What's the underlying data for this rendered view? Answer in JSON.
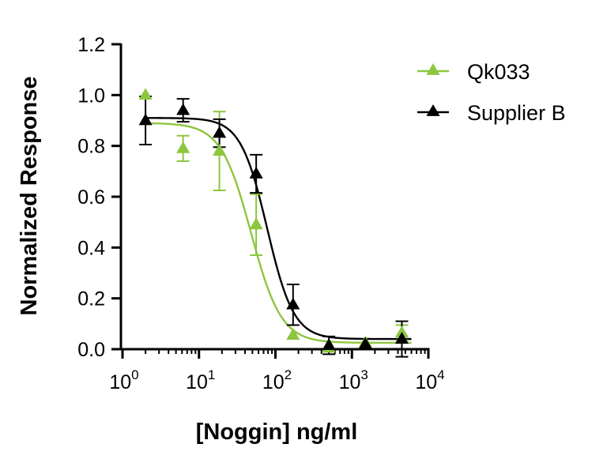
{
  "chart_data": {
    "type": "scatter",
    "title": "",
    "xlabel": "[Noggin] ng/ml",
    "ylabel": "Normalized Response",
    "xscale": "log10",
    "xlim": [
      1,
      10000
    ],
    "ylim": [
      0,
      1.2
    ],
    "x_ticks": [
      1,
      10,
      100,
      1000,
      10000
    ],
    "x_tick_labels": [
      {
        "base": "10",
        "exp": "0"
      },
      {
        "base": "10",
        "exp": "1"
      },
      {
        "base": "10",
        "exp": "2"
      },
      {
        "base": "10",
        "exp": "3"
      },
      {
        "base": "10",
        "exp": "4"
      }
    ],
    "y_ticks": [
      0,
      0.2,
      0.4,
      0.6,
      0.8,
      1.0,
      1.2
    ],
    "y_tick_labels": [
      "0.0",
      "0.2",
      "0.4",
      "0.6",
      "0.8",
      "1.0",
      "1.2"
    ],
    "grid": false,
    "legend_position": "top-right",
    "series": [
      {
        "name": "Qk033",
        "color": "#8dc63f",
        "marker": "triangle",
        "points": [
          {
            "x": 2.0,
            "y": 1.0,
            "err": 0.0
          },
          {
            "x": 6.2,
            "y": 0.79,
            "err": 0.05
          },
          {
            "x": 18.5,
            "y": 0.78,
            "err": 0.155
          },
          {
            "x": 56,
            "y": 0.49,
            "err": 0.12
          },
          {
            "x": 170,
            "y": 0.055,
            "err": 0.0
          },
          {
            "x": 500,
            "y": 0.005,
            "err": 0.0
          },
          {
            "x": 1500,
            "y": 0.025,
            "err": 0.0
          },
          {
            "x": 4500,
            "y": 0.065,
            "err": 0.03
          }
        ],
        "fit": {
          "top": 0.89,
          "bottom": 0.025,
          "ic50": 48,
          "hill": 2.2
        }
      },
      {
        "name": "Supplier B",
        "color": "#000000",
        "marker": "triangle",
        "points": [
          {
            "x": 2.0,
            "y": 0.9,
            "err": 0.095
          },
          {
            "x": 6.2,
            "y": 0.94,
            "err": 0.045
          },
          {
            "x": 18.5,
            "y": 0.85,
            "err": 0.055
          },
          {
            "x": 56,
            "y": 0.69,
            "err": 0.075
          },
          {
            "x": 170,
            "y": 0.175,
            "err": 0.08
          },
          {
            "x": 500,
            "y": 0.015,
            "err": 0.035
          },
          {
            "x": 1500,
            "y": 0.02,
            "err": 0.0
          },
          {
            "x": 4500,
            "y": 0.04,
            "err": 0.07
          }
        ],
        "fit": {
          "top": 0.91,
          "bottom": 0.04,
          "ic50": 78,
          "hill": 2.5
        }
      }
    ]
  }
}
